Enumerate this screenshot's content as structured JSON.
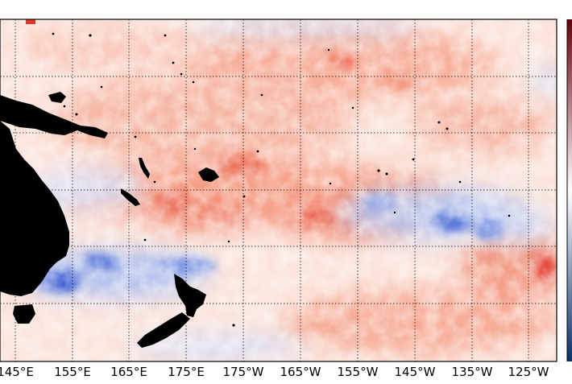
{
  "map": {
    "longitude_labels": [
      "145°E",
      "155°E",
      "165°E",
      "175°E",
      "175°W",
      "165°W",
      "155°W",
      "145°W",
      "135°W",
      "125°W"
    ],
    "colors": {
      "strong_positive": "#e2382a",
      "moderate_positive": "#f6a98f",
      "neutral": "#ffffff",
      "moderate_negative": "#9db4ec",
      "strong_negative": "#2746c9",
      "land": "#000000",
      "gridline": "#000000",
      "colorbar_top": "#67000d",
      "colorbar_bottom": "#08306b"
    },
    "gridlines": "dotted",
    "colorbar_position": "right"
  }
}
